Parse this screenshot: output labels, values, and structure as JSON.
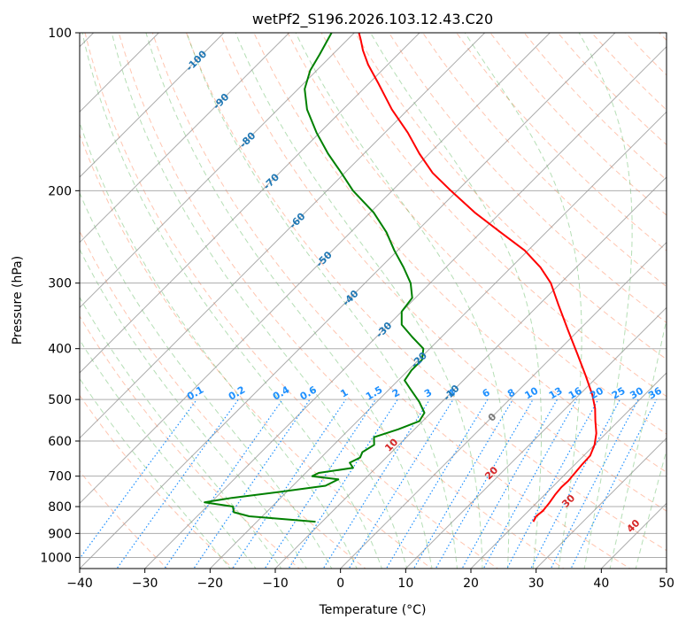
{
  "chart_data": {
    "type": "line",
    "diagram": "skew-t log-p",
    "title": "wetPf2_S196.2026.103.12.43.C20",
    "xlabel": "Temperature (°C)",
    "ylabel": "Pressure (hPa)",
    "xlim": [
      -40,
      50
    ],
    "ylim": [
      1050,
      100
    ],
    "y_scale": "log",
    "grid": true,
    "x_ticks": [
      "−40",
      "−30",
      "−20",
      "−10",
      "0",
      "10",
      "20",
      "30",
      "40",
      "50"
    ],
    "y_ticks": [
      "100",
      "200",
      "300",
      "400",
      "500",
      "600",
      "700",
      "800",
      "900",
      "1000"
    ],
    "colors": {
      "temperature": "#ff0000",
      "dewpoint": "#008000",
      "isotherm_label": "#1f77b4",
      "mixing_ratio": "#1e90ff",
      "dry_adiabat": "#ff7f50",
      "moist_adiabat": "#2ca02c",
      "moist_label": "#d62728"
    },
    "series": [
      {
        "name": "",
        "color": "#ff0000",
        "points": [
          {
            "p": 855,
            "t": 22.4
          },
          {
            "p": 835,
            "t": 22.0
          },
          {
            "p": 815,
            "t": 22.2
          },
          {
            "p": 790,
            "t": 22.0
          },
          {
            "p": 760,
            "t": 21.6
          },
          {
            "p": 735,
            "t": 21.4
          },
          {
            "p": 715,
            "t": 21.5
          },
          {
            "p": 690,
            "t": 21.3
          },
          {
            "p": 665,
            "t": 21.1
          },
          {
            "p": 640,
            "t": 21.0
          },
          {
            "p": 610,
            "t": 20.0
          },
          {
            "p": 580,
            "t": 18.5
          },
          {
            "p": 550,
            "t": 16.5
          },
          {
            "p": 520,
            "t": 14.5
          },
          {
            "p": 490,
            "t": 12.0
          },
          {
            "p": 450,
            "t": 8.0
          },
          {
            "p": 410,
            "t": 3.5
          },
          {
            "p": 370,
            "t": -1.5
          },
          {
            "p": 330,
            "t": -7.0
          },
          {
            "p": 300,
            "t": -11.5
          },
          {
            "p": 280,
            "t": -15.5
          },
          {
            "p": 260,
            "t": -20.5
          },
          {
            "p": 240,
            "t": -27.0
          },
          {
            "p": 220,
            "t": -34.0
          },
          {
            "p": 200,
            "t": -41.0
          },
          {
            "p": 185,
            "t": -46.5
          },
          {
            "p": 170,
            "t": -51.5
          },
          {
            "p": 155,
            "t": -56.5
          },
          {
            "p": 140,
            "t": -62.5
          },
          {
            "p": 125,
            "t": -68.5
          },
          {
            "p": 115,
            "t": -73.0
          },
          {
            "p": 108,
            "t": -76.0
          },
          {
            "p": 103,
            "t": -78.0
          },
          {
            "p": 100,
            "t": -79.3
          }
        ]
      },
      {
        "name": "",
        "color": "#008000",
        "points": [
          {
            "p": 855,
            "t": -11.0
          },
          {
            "p": 835,
            "t": -22.0
          },
          {
            "p": 820,
            "t": -25.0
          },
          {
            "p": 800,
            "t": -26.0
          },
          {
            "p": 785,
            "t": -31.0
          },
          {
            "p": 770,
            "t": -27.5
          },
          {
            "p": 750,
            "t": -21.0
          },
          {
            "p": 730,
            "t": -15.0
          },
          {
            "p": 710,
            "t": -14.0
          },
          {
            "p": 700,
            "t": -18.5
          },
          {
            "p": 690,
            "t": -18.0
          },
          {
            "p": 675,
            "t": -13.5
          },
          {
            "p": 660,
            "t": -14.8
          },
          {
            "p": 645,
            "t": -14.0
          },
          {
            "p": 630,
            "t": -14.5
          },
          {
            "p": 610,
            "t": -13.8
          },
          {
            "p": 590,
            "t": -15.0
          },
          {
            "p": 570,
            "t": -12.5
          },
          {
            "p": 550,
            "t": -10.5
          },
          {
            "p": 530,
            "t": -11.0
          },
          {
            "p": 505,
            "t": -13.5
          },
          {
            "p": 480,
            "t": -16.5
          },
          {
            "p": 460,
            "t": -19.0
          },
          {
            "p": 440,
            "t": -19.5
          },
          {
            "p": 420,
            "t": -19.5
          },
          {
            "p": 400,
            "t": -21.0
          },
          {
            "p": 380,
            "t": -24.5
          },
          {
            "p": 360,
            "t": -28.0
          },
          {
            "p": 340,
            "t": -30.0
          },
          {
            "p": 320,
            "t": -30.5
          },
          {
            "p": 300,
            "t": -33.0
          },
          {
            "p": 280,
            "t": -36.5
          },
          {
            "p": 260,
            "t": -40.5
          },
          {
            "p": 240,
            "t": -44.5
          },
          {
            "p": 220,
            "t": -49.5
          },
          {
            "p": 200,
            "t": -56.0
          },
          {
            "p": 185,
            "t": -60.5
          },
          {
            "p": 170,
            "t": -65.5
          },
          {
            "p": 155,
            "t": -70.5
          },
          {
            "p": 140,
            "t": -75.5
          },
          {
            "p": 128,
            "t": -79.0
          },
          {
            "p": 118,
            "t": -81.0
          },
          {
            "p": 110,
            "t": -82.0
          },
          {
            "p": 100,
            "t": -83.5
          }
        ]
      }
    ],
    "isotherm_labels": [
      "-100",
      "-90",
      "-80",
      "-70",
      "-60",
      "-50",
      "-40",
      "-30",
      "-20",
      "-10",
      "0"
    ],
    "mixing_ratio_labels": [
      "0.1",
      "0.2",
      "0.4",
      "0.6",
      "1",
      "1.5",
      "2",
      "3",
      "4",
      "6",
      "8",
      "10",
      "13",
      "16",
      "20",
      "25",
      "30",
      "36"
    ],
    "moist_adiabat_labels": [
      "10",
      "20",
      "30",
      "40"
    ]
  }
}
